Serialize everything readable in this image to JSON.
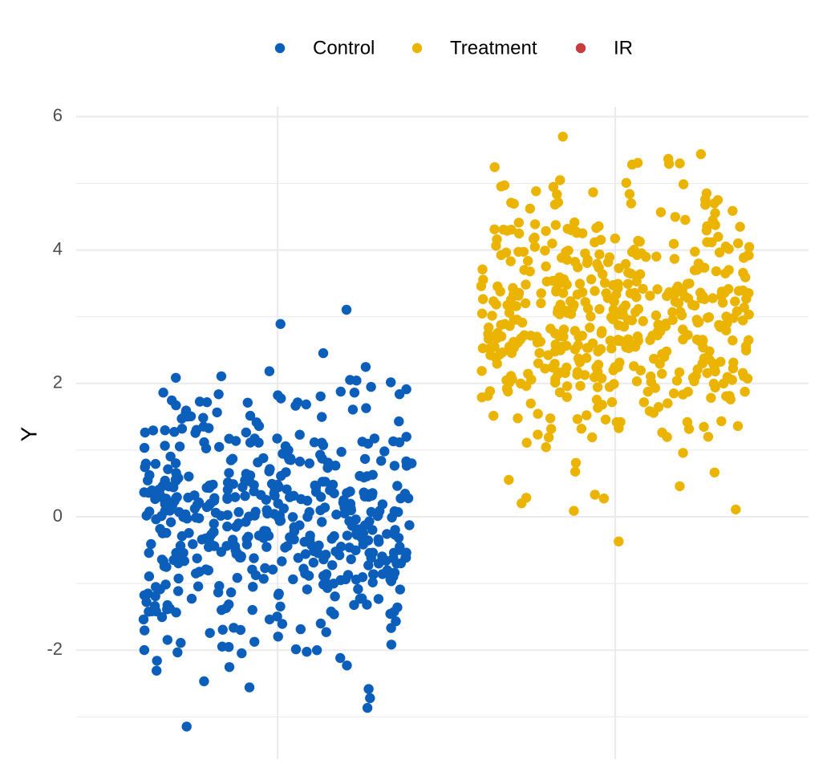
{
  "chart_data": {
    "type": "scatter",
    "title": "",
    "xlabel": "",
    "ylabel": "Y",
    "ylim": [
      -3.2,
      6.1
    ],
    "yticks": [
      -2,
      0,
      2,
      4,
      6
    ],
    "y_tick_labels": [
      "-2",
      "0",
      "2",
      "4",
      "6"
    ],
    "x_categories": 2,
    "grid": true,
    "legend_position": "top",
    "series": [
      {
        "name": "Control",
        "color": "#0C5EBB",
        "x_group": 1,
        "n": 500,
        "mean": 0.0,
        "sd": 1.0,
        "y_min": -3.2,
        "y_max": 3.2
      },
      {
        "name": "Treatment",
        "color": "#EBB400",
        "x_group": 2,
        "n": 500,
        "mean": 3.0,
        "sd": 1.0,
        "y_min": -0.37,
        "y_max": 5.7
      },
      {
        "name": "IR",
        "color": "#C83C3C",
        "x_group": null,
        "n": 0
      }
    ]
  }
}
